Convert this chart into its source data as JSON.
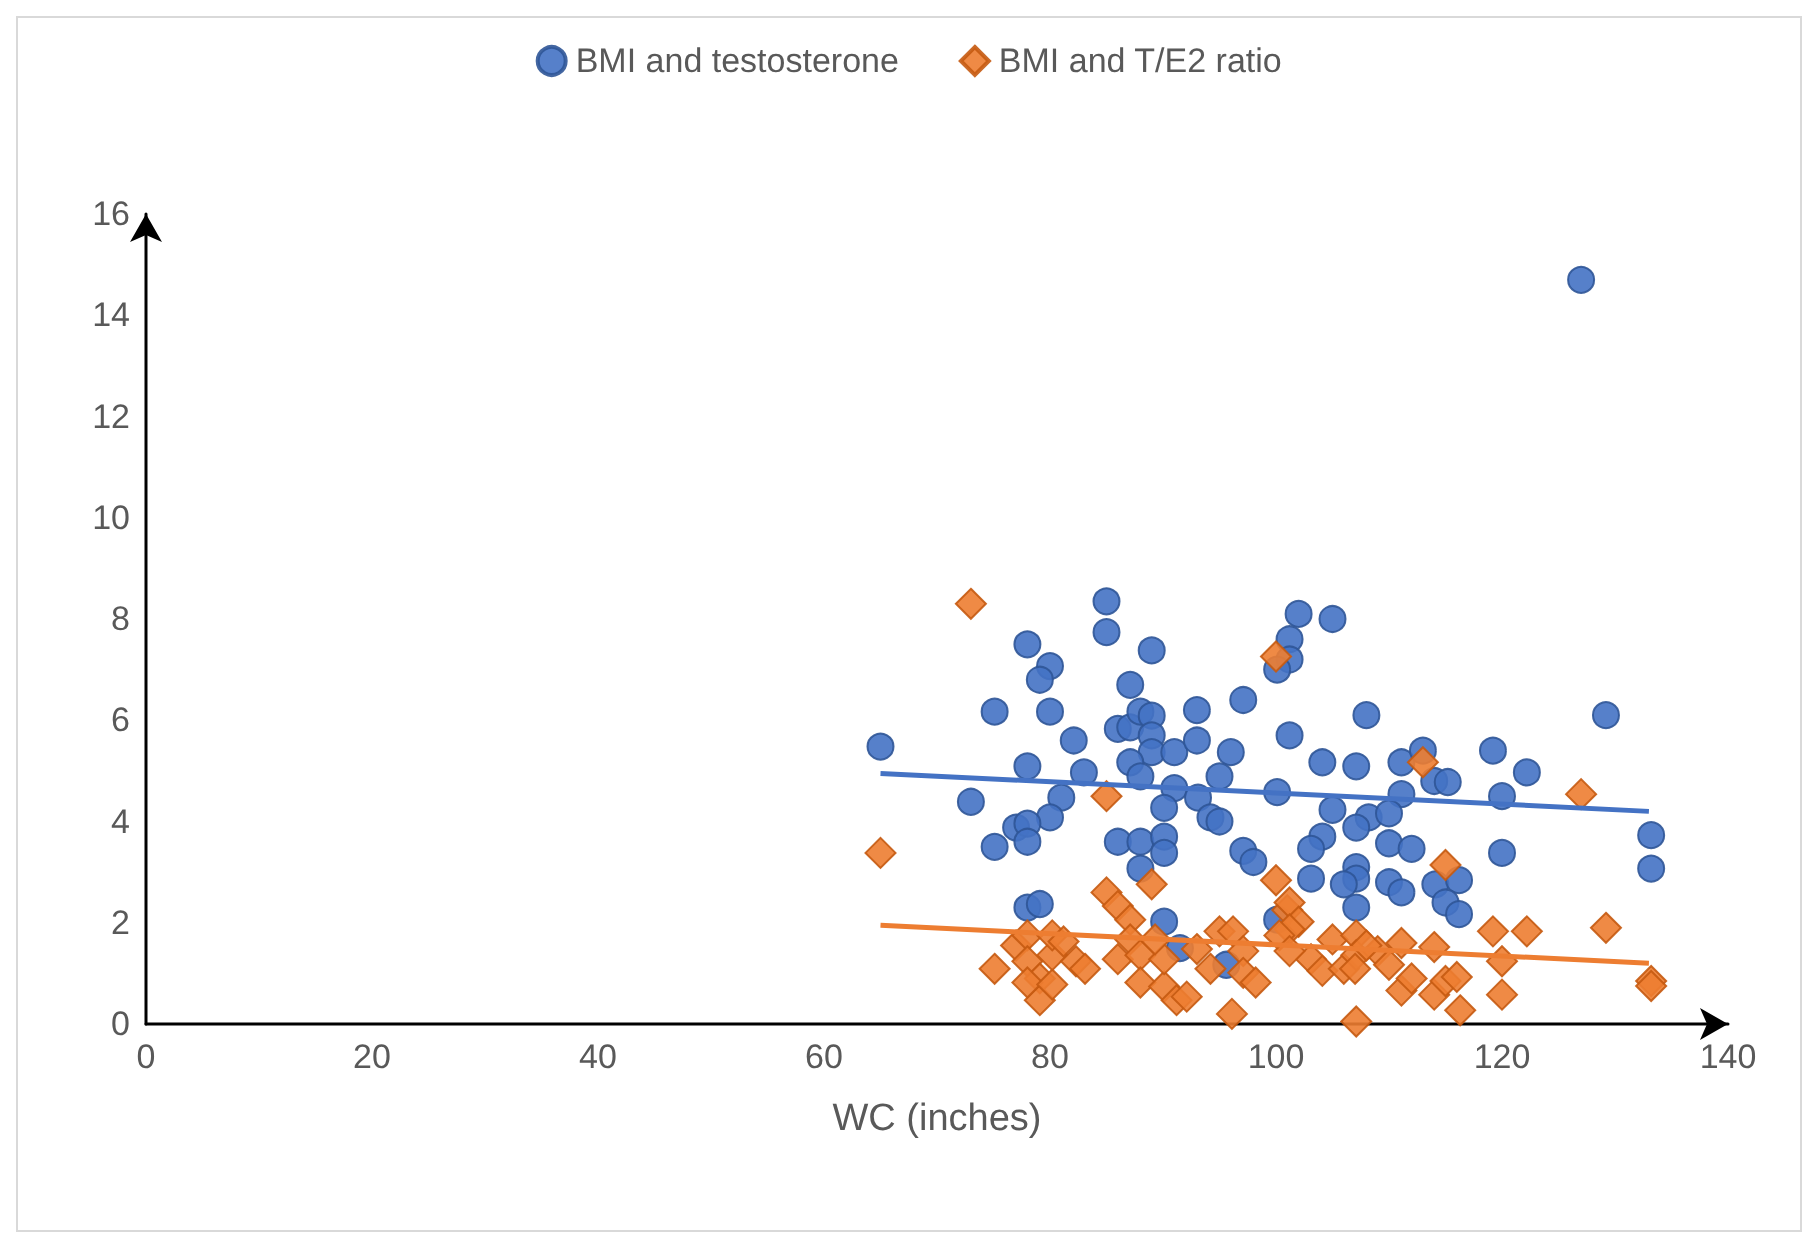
{
  "chart_data": {
    "type": "scatter",
    "xlabel": "WC (inches)",
    "xlim": [
      0,
      140
    ],
    "xticks": [
      0,
      20,
      40,
      60,
      80,
      100,
      120,
      140
    ],
    "ylim": [
      0,
      16
    ],
    "yticks": [
      0,
      2,
      4,
      6,
      8,
      10,
      12,
      14,
      16
    ],
    "grid": false,
    "legend": "top",
    "series": [
      {
        "name": "BMI and testosterone",
        "color": "#4472c4",
        "marker": "circle",
        "x": [
          65,
          73,
          75.1,
          75.1,
          78,
          80,
          79.1,
          80,
          78,
          82.1,
          83,
          81,
          80,
          77,
          78,
          78,
          78,
          79.1,
          85,
          85,
          89,
          87.1,
          86,
          87.1,
          88,
          89,
          89,
          89,
          87.1,
          88,
          91,
          93,
          93,
          91,
          90.1,
          96,
          95,
          97.1,
          93.1,
          94.2,
          95,
          86,
          88,
          90.1,
          90.1,
          88,
          90.1,
          91.5,
          95.6,
          97.1,
          98,
          102,
          105,
          101.2,
          101.2,
          100.1,
          108,
          101.2,
          104.1,
          107.1,
          111.1,
          113,
          114,
          115.2,
          119.2,
          122.2,
          129.2,
          100.1,
          111.1,
          120,
          105,
          108.2,
          110,
          107.1,
          104.1,
          103.1,
          110,
          112,
          120,
          133.2,
          133.2,
          107.1,
          107.1,
          103.1,
          106,
          110,
          111.1,
          114.1,
          116.2,
          115,
          116.2,
          107.1,
          100.1,
          127
        ],
        "values": [
          5.48,
          4.39,
          6.17,
          3.5,
          7.5,
          7.07,
          6.8,
          6.17,
          5.09,
          5.6,
          4.97,
          4.47,
          4.08,
          3.88,
          3.96,
          3.6,
          2.3,
          2.37,
          8.35,
          7.74,
          7.38,
          6.7,
          5.83,
          5.86,
          6.17,
          6.09,
          5.7,
          5.37,
          5.17,
          4.89,
          5.37,
          6.2,
          5.6,
          4.66,
          4.27,
          5.37,
          4.89,
          6.4,
          4.47,
          4.08,
          4.0,
          3.6,
          3.6,
          3.7,
          3.38,
          3.07,
          2.02,
          1.5,
          1.17,
          3.42,
          3.2,
          8.1,
          8.0,
          7.6,
          7.2,
          7.0,
          6.1,
          5.7,
          5.17,
          5.09,
          5.17,
          5.4,
          4.8,
          4.78,
          5.4,
          4.97,
          6.1,
          4.58,
          4.54,
          4.5,
          4.23,
          4.08,
          4.16,
          3.88,
          3.7,
          3.46,
          3.57,
          3.46,
          3.38,
          3.73,
          3.07,
          3.1,
          2.87,
          2.87,
          2.76,
          2.8,
          2.6,
          2.76,
          2.84,
          2.4,
          2.17,
          2.3,
          2.06,
          14.7
        ]
      },
      {
        "name": "BMI and T/E2 ratio",
        "color": "#ed7d31",
        "marker": "diamond",
        "x": [
          73,
          65,
          85,
          89,
          100,
          85,
          86,
          87.1,
          75.1,
          77,
          78,
          78,
          79.1,
          79.1,
          78,
          80.2,
          80.2,
          80.2,
          82.3,
          83.1,
          81.2,
          86,
          87.1,
          88,
          88,
          90.1,
          90.1,
          91.2,
          92.1,
          89.3,
          93,
          95,
          94.2,
          96.2,
          97.1,
          97.1,
          98.2,
          96.1,
          100,
          101,
          113,
          127,
          115,
          101.2,
          102,
          101.2,
          105,
          107.1,
          111.1,
          114,
          119.2,
          122.2,
          129.2,
          120,
          133.2,
          133.2,
          103.1,
          104.1,
          106,
          107.1,
          109,
          110,
          111.1,
          112,
          114,
          115,
          116,
          116.3,
          120,
          107.1,
          107,
          108,
          100.3,
          101.2
        ],
        "values": [
          8.3,
          3.38,
          4.5,
          2.76,
          7.26,
          2.6,
          2.33,
          2.06,
          1.09,
          1.55,
          1.75,
          1.24,
          0.9,
          0.47,
          0.82,
          0.78,
          1.36,
          1.75,
          1.24,
          1.09,
          1.63,
          1.28,
          1.67,
          1.36,
          0.82,
          0.74,
          1.28,
          0.47,
          0.54,
          1.67,
          1.48,
          1.83,
          1.09,
          1.83,
          1.44,
          1.01,
          0.82,
          0.2,
          2.84,
          2.25,
          5.17,
          4.54,
          3.14,
          2.4,
          2.02,
          1.87,
          1.67,
          1.75,
          1.6,
          1.52,
          1.83,
          1.83,
          1.9,
          1.24,
          0.85,
          0.75,
          1.28,
          1.05,
          1.09,
          1.36,
          1.44,
          1.17,
          0.66,
          0.9,
          0.58,
          0.85,
          0.93,
          0.27,
          0.58,
          0.05,
          1.09,
          1.55,
          1.75,
          1.44
        ]
      },
      {
        "type": "line",
        "color": "#4472c4",
        "marker": "none",
        "x": [
          65,
          133
        ],
        "values": [
          4.95,
          4.2
        ]
      },
      {
        "type": "line",
        "color": "#ed7d31",
        "marker": "none",
        "x": [
          65,
          133
        ],
        "values": [
          1.95,
          1.2
        ]
      }
    ]
  }
}
